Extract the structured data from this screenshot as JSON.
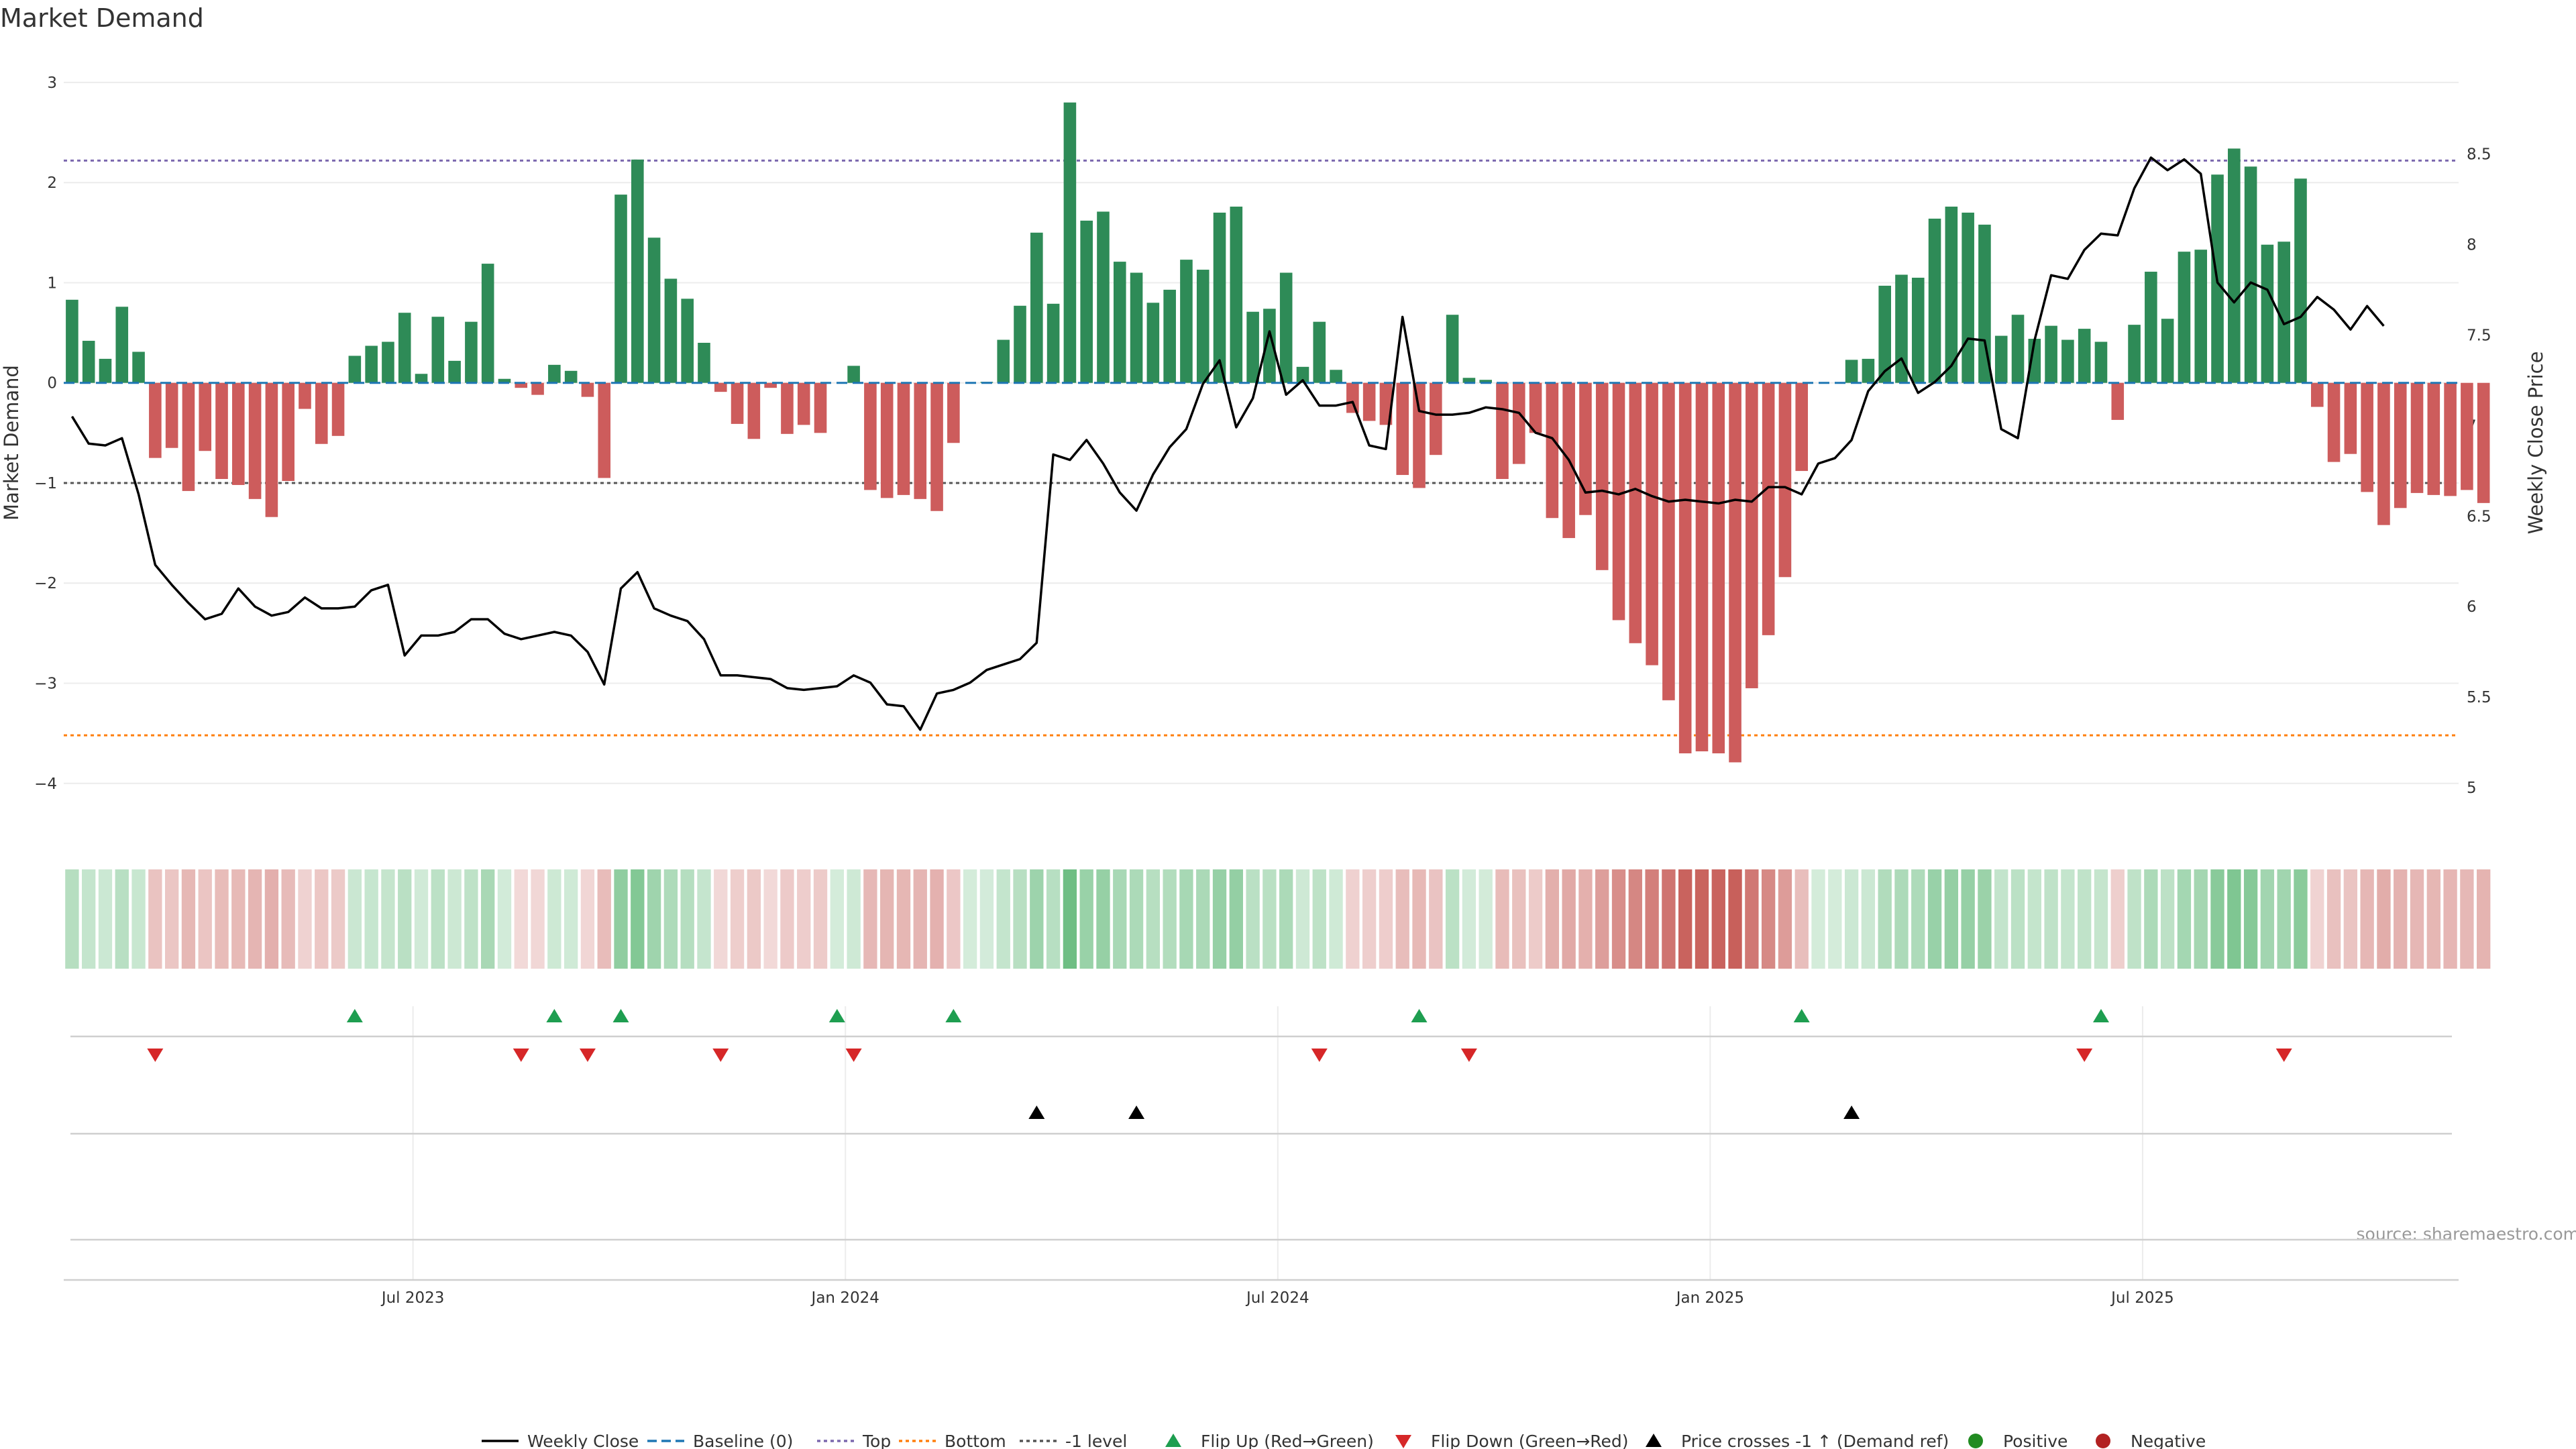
{
  "chart_data": {
    "type": "bar",
    "title": "Market Demand",
    "ylabel": "Market Demand",
    "y2label": "Weekly Close Price",
    "ylim": [
      -4.35,
      3.1
    ],
    "y2lim": [
      4.83,
      8.95
    ],
    "yticks": [
      "3",
      "2",
      "1",
      "0",
      "−1",
      "−2",
      "−3",
      "−4"
    ],
    "y2ticks": [
      "8.5",
      "8",
      "7.5",
      "7",
      "6.5",
      "6",
      "5.5",
      "5"
    ],
    "xticks": [
      {
        "label": "Jul 2023",
        "week": 21
      },
      {
        "label": "Jan 2024",
        "week": 47
      },
      {
        "label": "Jul 2024",
        "week": 73
      },
      {
        "label": "Jan 2025",
        "week": 99
      },
      {
        "label": "Jul 2025",
        "week": 125
      }
    ],
    "weeks": 144,
    "levels": {
      "top": 2.22,
      "bottom": -3.52,
      "minus_one": -1,
      "baseline": 0
    },
    "series": [
      {
        "name": "Market Demand",
        "values": [
          0.83,
          0.42,
          0.24,
          0.76,
          0.31,
          -0.75,
          -0.65,
          -1.08,
          -0.68,
          -0.96,
          -1.02,
          -1.16,
          -1.34,
          -0.98,
          -0.26,
          -0.61,
          -0.53,
          0.27,
          0.37,
          0.41,
          0.7,
          0.09,
          0.66,
          0.22,
          0.61,
          1.19,
          0.04,
          -0.05,
          -0.12,
          0.18,
          0.12,
          -0.14,
          -0.95,
          1.88,
          2.23,
          1.45,
          1.04,
          0.84,
          0.4,
          -0.09,
          -0.41,
          -0.56,
          -0.05,
          -0.51,
          -0.42,
          -0.5,
          0,
          0.17,
          -1.07,
          -1.15,
          -1.12,
          -1.16,
          -1.28,
          -0.6,
          0,
          0.01,
          0.43,
          0.77,
          1.5,
          0.79,
          2.8,
          1.62,
          1.71,
          1.21,
          1.1,
          0.8,
          0.93,
          1.23,
          1.13,
          1.7,
          1.76,
          0.71,
          0.74,
          1.1,
          0.16,
          0.61,
          0.13,
          -0.3,
          -0.38,
          -0.42,
          -0.92,
          -1.05,
          -0.72,
          0.68,
          0.05,
          0.03,
          -0.96,
          -0.81,
          -0.5,
          -1.35,
          -1.55,
          -1.32,
          -1.87,
          -2.37,
          -2.6,
          -2.82,
          -3.17,
          -3.7,
          -3.68,
          -3.7,
          -3.79,
          -3.05,
          -2.52,
          -1.94,
          -0.88,
          0,
          0,
          0.23,
          0.24,
          0.97,
          1.08,
          1.05,
          1.64,
          1.76,
          1.7,
          1.58,
          0.47,
          0.68,
          0.44,
          0.57,
          0.43,
          0.54,
          0.41,
          -0.37,
          0.58,
          1.11,
          0.64,
          1.31,
          1.33,
          2.08,
          2.34,
          2.16,
          1.38,
          1.41,
          2.04,
          -0.24,
          -0.79,
          -0.71,
          -1.09,
          -1.42,
          -1.25,
          -1.1,
          -1.12,
          -1.13,
          -1.07,
          -1.2
        ]
      },
      {
        "name": "Weekly Close",
        "values": [
          7.05,
          6.9,
          6.89,
          6.93,
          6.62,
          6.23,
          6.12,
          6.02,
          5.93,
          5.96,
          6.1,
          6.0,
          5.95,
          5.97,
          6.05,
          5.99,
          5.99,
          6.0,
          6.09,
          6.12,
          5.73,
          5.84,
          5.84,
          5.86,
          5.93,
          5.93,
          5.85,
          5.82,
          5.84,
          5.86,
          5.84,
          5.75,
          5.57,
          6.1,
          6.19,
          5.99,
          5.95,
          5.92,
          5.82,
          5.62,
          5.62,
          5.61,
          5.6,
          5.55,
          5.54,
          5.55,
          5.56,
          5.62,
          5.58,
          5.46,
          5.45,
          5.32,
          5.52,
          5.54,
          5.58,
          5.65,
          5.68,
          5.71,
          5.8,
          6.84,
          6.81,
          6.92,
          6.79,
          6.63,
          6.53,
          6.73,
          6.88,
          6.98,
          7.23,
          7.36,
          6.99,
          7.15,
          7.52,
          7.17,
          7.25,
          7.11,
          7.11,
          7.13,
          6.89,
          6.87,
          7.6,
          7.08,
          7.06,
          7.06,
          7.07,
          7.1,
          7.09,
          7.07,
          6.96,
          6.93,
          6.81,
          6.63,
          6.64,
          6.62,
          6.65,
          6.61,
          6.58,
          6.59,
          6.58,
          6.57,
          6.59,
          6.58,
          6.66,
          6.66,
          6.62,
          6.79,
          6.82,
          6.92,
          7.19,
          7.3,
          7.37,
          7.18,
          7.24,
          7.33,
          7.48,
          7.47,
          6.98,
          6.93,
          7.47,
          7.83,
          7.81,
          7.97,
          8.06,
          8.05,
          8.31,
          8.48,
          8.41,
          8.47,
          8.39,
          7.79,
          7.68,
          7.79,
          7.75,
          7.56,
          7.6,
          7.71,
          7.64,
          7.53,
          7.66,
          7.55
        ]
      }
    ],
    "demand_strip": "per-week colour intensity of Market Demand",
    "flip_up_weeks": [
      17,
      29,
      33,
      46,
      53,
      81,
      104,
      122
    ],
    "flip_down_weeks": [
      5,
      27,
      31,
      39,
      47,
      75,
      84,
      121,
      133
    ],
    "price_cross_weeks": [
      58,
      64,
      107
    ],
    "colors": {
      "positive_bar": "#2e8b57",
      "negative_bar": "#cd5c5c",
      "weekly_close": "#000000",
      "baseline": "#1f77b4",
      "top": "#7b68ae",
      "bottom": "#ff7f0e",
      "minus_one": "#555555",
      "flip_up": "#1e9e50",
      "flip_down": "#d62728",
      "price_cross": "#000000",
      "positive_dot": "#228b22",
      "negative_dot": "#b22222"
    },
    "legend_placement": "bottom-center",
    "legend": [
      {
        "label": "Weekly Close",
        "kind": "line"
      },
      {
        "label": "Baseline (0)",
        "kind": "dashed-blue"
      },
      {
        "label": "Top",
        "kind": "dotted-purple"
      },
      {
        "label": "Bottom",
        "kind": "dotted-orange"
      },
      {
        "label": "-1 level",
        "kind": "dotted-gray"
      },
      {
        "label": "Flip Up (Red→Green)",
        "kind": "triangle-up-green"
      },
      {
        "label": "Flip Down (Green→Red)",
        "kind": "triangle-down-red"
      },
      {
        "label": "Price crosses -1 ↑ (Demand ref)",
        "kind": "triangle-up-black"
      },
      {
        "label": "Positive",
        "kind": "dot-green"
      },
      {
        "label": "Negative",
        "kind": "dot-red"
      }
    ],
    "source": "source: sharemaestro.com"
  }
}
